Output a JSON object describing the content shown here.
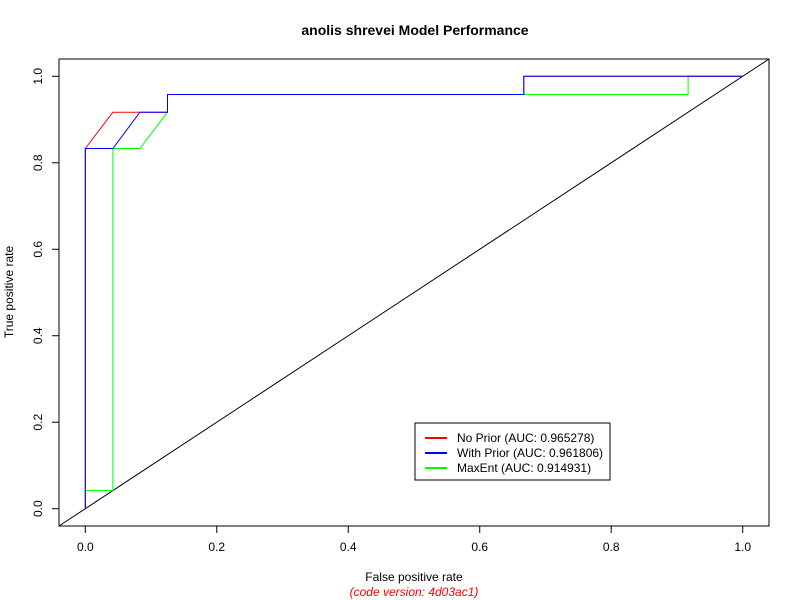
{
  "chart_data": {
    "type": "line",
    "title": "anolis shrevei Model Performance",
    "xlabel": "False positive rate",
    "ylabel": "True positive rate",
    "caption": "(code version: 4d03ac1)",
    "caption_color": "#ff0000",
    "xlim": [
      -0.04,
      1.04
    ],
    "ylim": [
      -0.04,
      1.04
    ],
    "x_ticks": [
      "0.0",
      "0.2",
      "0.4",
      "0.6",
      "0.8",
      "1.0"
    ],
    "y_ticks": [
      "0.0",
      "0.2",
      "0.4",
      "0.6",
      "0.8",
      "1.0"
    ],
    "grid": false,
    "legend_position": "bottom-right",
    "diagonal_reference": true,
    "series": [
      {
        "name": "No Prior (AUC: 0.965278)",
        "color": "#ff0000",
        "x": [
          0,
          0,
          0.042,
          0.083,
          0.125,
          0.125,
          0.667,
          0.667,
          1.0
        ],
        "y": [
          0,
          0.833,
          0.917,
          0.917,
          0.917,
          0.958,
          0.958,
          1.0,
          1.0
        ]
      },
      {
        "name": "With Prior (AUC: 0.961806)",
        "color": "#0000ff",
        "x": [
          0,
          0,
          0.042,
          0.083,
          0.125,
          0.125,
          0.667,
          0.667,
          1.0
        ],
        "y": [
          0,
          0.833,
          0.833,
          0.917,
          0.917,
          0.958,
          0.958,
          1.0,
          1.0
        ]
      },
      {
        "name": "MaxEnt (AUC: 0.914931)",
        "color": "#00ff00",
        "x": [
          0,
          0,
          0.042,
          0.042,
          0.083,
          0.125,
          0.125,
          0.917,
          0.917,
          1.0
        ],
        "y": [
          0,
          0.042,
          0.042,
          0.833,
          0.833,
          0.917,
          0.958,
          0.958,
          1.0,
          1.0
        ]
      }
    ]
  }
}
